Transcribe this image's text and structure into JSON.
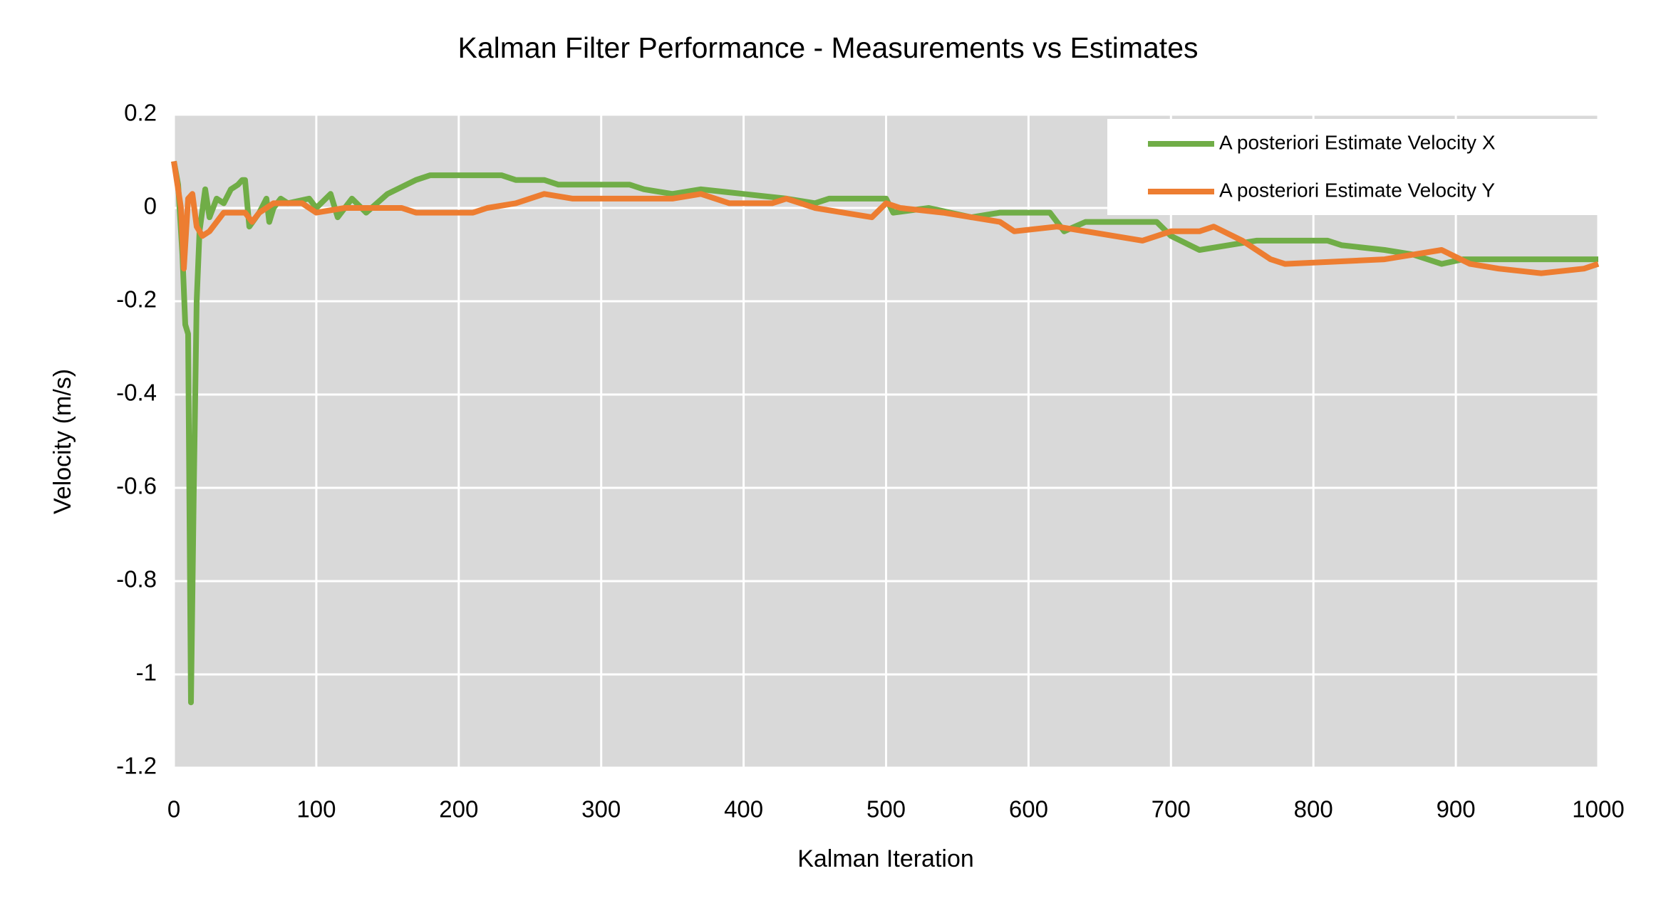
{
  "chart_data": {
    "type": "line",
    "title": "Kalman Filter Performance - Measurements vs Estimates",
    "x_label": "Kalman Iteration",
    "y_label": "Velocity (m/s)",
    "xlim": [
      0,
      1000
    ],
    "xticks": [
      0,
      100,
      200,
      300,
      400,
      500,
      600,
      700,
      800,
      900,
      1000
    ],
    "ylim": [
      -1.2,
      0.2
    ],
    "yticks": [
      0.2,
      0,
      -0.2,
      -0.4,
      -0.6,
      -0.8,
      -1,
      -1.2
    ],
    "grid": true,
    "legend": "upper right",
    "series": [
      {
        "name": "A posteriori Estimate Velocity X",
        "color": "#70ad47",
        "x": [
          0,
          3,
          6,
          8,
          10,
          12,
          14,
          16,
          18,
          22,
          25,
          30,
          35,
          40,
          45,
          48,
          50,
          53,
          60,
          65,
          67,
          70,
          75,
          80,
          95,
          100,
          110,
          115,
          125,
          135,
          150,
          170,
          180,
          230,
          240,
          260,
          270,
          320,
          330,
          350,
          370,
          400,
          430,
          450,
          460,
          500,
          505,
          530,
          560,
          580,
          615,
          625,
          640,
          690,
          700,
          720,
          740,
          760,
          810,
          820,
          850,
          870,
          890,
          905,
          1000
        ],
        "values": [
          0.1,
          0.05,
          -0.1,
          -0.25,
          -0.27,
          -1.06,
          -0.6,
          -0.2,
          -0.05,
          0.04,
          -0.02,
          0.02,
          0.01,
          0.04,
          0.05,
          0.06,
          0.06,
          -0.04,
          -0.01,
          0.02,
          -0.03,
          0.0,
          0.02,
          0.01,
          0.02,
          0.0,
          0.03,
          -0.02,
          0.02,
          -0.01,
          0.03,
          0.06,
          0.07,
          0.07,
          0.06,
          0.06,
          0.05,
          0.05,
          0.04,
          0.03,
          0.04,
          0.03,
          0.02,
          0.01,
          0.02,
          0.02,
          -0.01,
          0.0,
          -0.02,
          -0.01,
          -0.01,
          -0.05,
          -0.03,
          -0.03,
          -0.06,
          -0.09,
          -0.08,
          -0.07,
          -0.07,
          -0.08,
          -0.09,
          -0.1,
          -0.12,
          -0.11,
          -0.11
        ]
      },
      {
        "name": "A posteriori Estimate Velocity Y",
        "color": "#ed7d31",
        "x": [
          0,
          5,
          7,
          10,
          13,
          16,
          20,
          25,
          35,
          40,
          50,
          55,
          60,
          70,
          90,
          100,
          120,
          140,
          160,
          170,
          210,
          220,
          240,
          260,
          280,
          300,
          350,
          370,
          390,
          420,
          430,
          450,
          470,
          490,
          500,
          510,
          540,
          560,
          580,
          590,
          620,
          660,
          680,
          700,
          720,
          730,
          750,
          770,
          780,
          850,
          890,
          910,
          930,
          960,
          990,
          1000
        ],
        "values": [
          0.1,
          0.0,
          -0.13,
          0.02,
          0.03,
          -0.04,
          -0.06,
          -0.05,
          -0.01,
          -0.01,
          -0.01,
          -0.03,
          -0.01,
          0.01,
          0.01,
          -0.01,
          0.0,
          0.0,
          0.0,
          -0.01,
          -0.01,
          0.0,
          0.01,
          0.03,
          0.02,
          0.02,
          0.02,
          0.03,
          0.01,
          0.01,
          0.02,
          0.0,
          -0.01,
          -0.02,
          0.01,
          0.0,
          -0.01,
          -0.02,
          -0.03,
          -0.05,
          -0.04,
          -0.06,
          -0.07,
          -0.05,
          -0.05,
          -0.04,
          -0.07,
          -0.11,
          -0.12,
          -0.11,
          -0.09,
          -0.12,
          -0.13,
          -0.14,
          -0.13,
          -0.12
        ]
      }
    ]
  }
}
